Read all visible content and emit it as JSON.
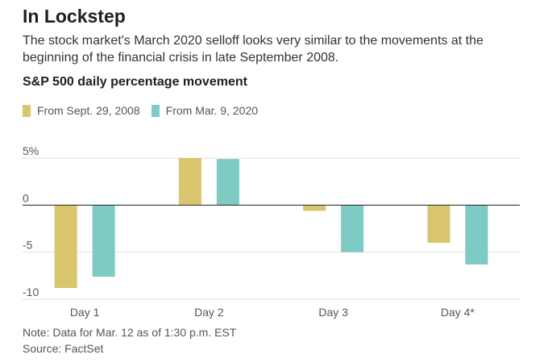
{
  "header": {
    "title": "In Lockstep",
    "subtitle": "The stock market's March 2020 selloff looks very similar to the movements at the beginning of the financial crisis in late September 2008."
  },
  "chart_data": {
    "type": "bar",
    "title": "S&P 500 daily percentage movement",
    "categories": [
      "Day 1",
      "Day 2",
      "Day 3",
      "Day 4*"
    ],
    "series": [
      {
        "name": "From Sept. 29, 2008",
        "color": "#d8c56c",
        "values": [
          -8.8,
          5.0,
          -0.6,
          -4.0
        ]
      },
      {
        "name": "From Mar. 9, 2020",
        "color": "#7ecac4",
        "values": [
          -7.6,
          4.9,
          -5.0,
          -6.3
        ]
      }
    ],
    "yticks": [
      {
        "value": 5,
        "label": "5%"
      },
      {
        "value": 0,
        "label": "0"
      },
      {
        "value": -5,
        "label": "-5"
      },
      {
        "value": -10,
        "label": "-10"
      }
    ],
    "ylim": [
      -10,
      5
    ],
    "grid": true,
    "legend_position": "top-left"
  },
  "footer": {
    "note": "Note: Data for Mar. 12 as of 1:30 p.m. EST",
    "source": "Source: FactSet"
  }
}
